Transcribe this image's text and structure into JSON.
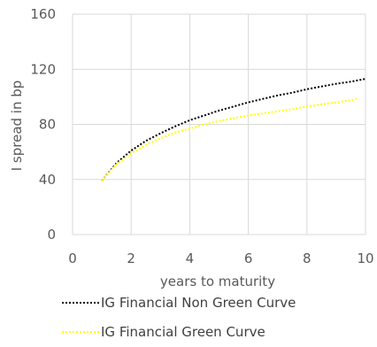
{
  "chart_data": {
    "type": "line",
    "xlabel": "years to maturity",
    "ylabel": "I spread in bp",
    "xlim": [
      0,
      10
    ],
    "ylim": [
      0,
      160
    ],
    "xticks": [
      0,
      2,
      4,
      6,
      8,
      10
    ],
    "yticks": [
      0,
      40,
      80,
      120,
      160
    ],
    "grid": true,
    "legend_position": "bottom",
    "series": [
      {
        "name": "IG Financial Non Green Curve",
        "color": "#000000",
        "x": [
          1,
          1.5,
          2,
          2.5,
          3,
          3.5,
          4,
          4.5,
          5,
          5.5,
          6,
          6.5,
          7,
          7.5,
          8,
          8.5,
          9,
          9.5,
          10
        ],
        "y": [
          39,
          52,
          61,
          68,
          73.5,
          78.5,
          83,
          86.5,
          90,
          93,
          96,
          98.5,
          101,
          103,
          105.5,
          107.5,
          109.5,
          111,
          113
        ]
      },
      {
        "name": "IG Financial Green Curve",
        "color": "#ffff00",
        "x": [
          1,
          1.5,
          2,
          2.5,
          3,
          3.5,
          4,
          4.5,
          5,
          5.5,
          6,
          6.5,
          7,
          7.5,
          8,
          8.5,
          9,
          9.5,
          9.7
        ],
        "y": [
          39,
          51,
          59,
          65,
          70,
          74,
          77,
          80,
          82.5,
          84.5,
          86.5,
          88,
          89.5,
          91,
          93,
          94.5,
          96,
          97.5,
          98.5
        ]
      }
    ]
  }
}
